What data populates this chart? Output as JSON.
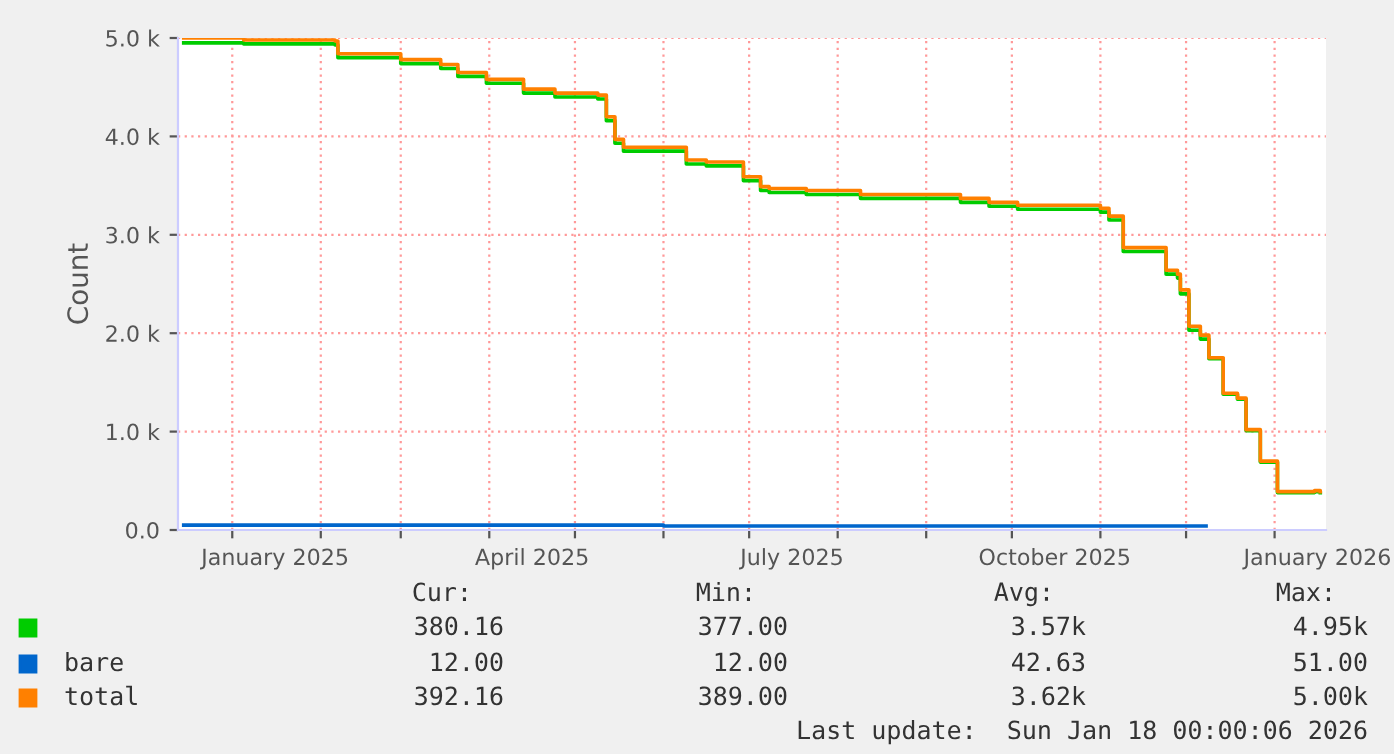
{
  "chart_data": {
    "type": "step",
    "ylabel": "Count",
    "x": [
      "2024-12-15",
      "2025-01-05",
      "2025-02-06",
      "2025-02-07",
      "2025-03-01",
      "2025-03-15",
      "2025-03-21",
      "2025-03-31",
      "2025-04-13",
      "2025-04-24",
      "2025-05-09",
      "2025-05-12",
      "2025-05-15",
      "2025-05-18",
      "2025-06-08",
      "2025-06-09",
      "2025-06-16",
      "2025-06-27",
      "2025-06-29",
      "2025-07-05",
      "2025-07-08",
      "2025-07-21",
      "2025-08-08",
      "2025-08-09",
      "2025-09-10",
      "2025-09-13",
      "2025-09-23",
      "2025-10-03",
      "2025-10-19",
      "2025-11-01",
      "2025-11-04",
      "2025-11-09",
      "2025-11-21",
      "2025-11-24",
      "2025-11-28",
      "2025-11-29",
      "2025-12-02",
      "2025-12-06",
      "2025-12-09",
      "2025-12-14",
      "2025-12-19",
      "2025-12-22",
      "2025-12-27",
      "2026-01-02",
      "2026-01-10",
      "2026-01-15",
      "2026-01-17"
    ],
    "series": [
      {
        "color": "#00cc00",
        "values": [
          4950,
          4940,
          4930,
          4800,
          4740,
          4690,
          4610,
          4540,
          4440,
          4400,
          4380,
          4160,
          3930,
          3850,
          3850,
          3720,
          3700,
          3700,
          3550,
          3450,
          3430,
          3410,
          3410,
          3370,
          3370,
          3330,
          3290,
          3260,
          3260,
          3230,
          3150,
          2830,
          2830,
          2600,
          2560,
          2400,
          2030,
          1940,
          1740,
          1380,
          1330,
          1010,
          690,
          380,
          380,
          390,
          380
        ]
      },
      {
        "name": "bare",
        "color": "#0066cc",
        "x": [
          "2024-12-15",
          "2025-06-01",
          "2025-12-08"
        ],
        "values": [
          50,
          40,
          40
        ]
      },
      {
        "name": "total",
        "color": "#ff8000",
        "values": [
          5000,
          4980,
          4970,
          4840,
          4780,
          4730,
          4650,
          4580,
          4480,
          4440,
          4420,
          4200,
          3970,
          3890,
          3890,
          3760,
          3740,
          3740,
          3590,
          3490,
          3470,
          3450,
          3450,
          3410,
          3410,
          3370,
          3330,
          3300,
          3300,
          3270,
          3190,
          2870,
          2870,
          2640,
          2600,
          2440,
          2070,
          1980,
          1750,
          1390,
          1340,
          1020,
          700,
          390,
          390,
          400,
          390
        ]
      }
    ],
    "xlim": [
      "2024-12-13",
      "2026-01-19"
    ],
    "xticks": [
      {
        "value": "2025-01-01",
        "label": null
      },
      {
        "value": "2025-01-16",
        "label": "January 2025"
      },
      {
        "value": "2025-02-01",
        "label": null
      },
      {
        "value": "2025-03-01",
        "label": null
      },
      {
        "value": "2025-04-01",
        "label": null
      },
      {
        "value": "2025-04-16",
        "label": "April 2025"
      },
      {
        "value": "2025-05-01",
        "label": null
      },
      {
        "value": "2025-06-01",
        "label": null
      },
      {
        "value": "2025-07-01",
        "label": null
      },
      {
        "value": "2025-07-16",
        "label": "July 2025"
      },
      {
        "value": "2025-08-01",
        "label": null
      },
      {
        "value": "2025-09-01",
        "label": null
      },
      {
        "value": "2025-10-01",
        "label": null
      },
      {
        "value": "2025-10-16",
        "label": "October 2025"
      },
      {
        "value": "2025-11-01",
        "label": null
      },
      {
        "value": "2025-12-01",
        "label": null
      },
      {
        "value": "2026-01-01",
        "label": null
      },
      {
        "value": "2026-01-16",
        "label": "January 2026"
      }
    ],
    "ylim": [
      0,
      5000
    ],
    "yticks": [
      {
        "value": 0,
        "label": "0.0"
      },
      {
        "value": 1000,
        "label": "1.0 k"
      },
      {
        "value": 2000,
        "label": "2.0 k"
      },
      {
        "value": 3000,
        "label": "3.0 k"
      },
      {
        "value": 4000,
        "label": "4.0 k"
      },
      {
        "value": 5000,
        "label": "5.0 k"
      }
    ],
    "grid": true,
    "legend": "bottom",
    "annotations": [
      "Cur:",
      "Min:",
      "Avg:",
      "Max:",
      "380.16",
      "377.00",
      "3.57k",
      "4.95k",
      "12.00",
      "12.00",
      "42.63",
      "51.00",
      "392.16",
      "389.00",
      "3.62k",
      "5.00k",
      "Last update:  Sun Jan 18 00:00:06 2026"
    ]
  }
}
